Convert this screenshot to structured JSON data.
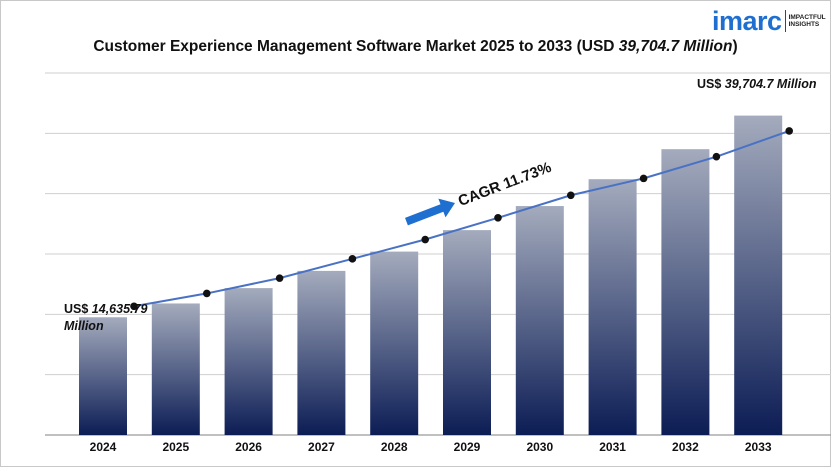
{
  "title_prefix": "Customer Experience Management Software Market 2025 to 2033 (USD ",
  "title_value": "39,704.7 Million",
  "title_suffix": ")",
  "logo": {
    "word": "imarc",
    "tagline_1": "IMPACTFUL",
    "tagline_2": "INSIGHTS"
  },
  "annotations": {
    "start_prefix": "US$ ",
    "start_value": "14,635.79",
    "start_unit": "Million",
    "end_prefix": "US$ ",
    "end_value": "39,704.7 Million",
    "cagr": "CAGR 11.73%"
  },
  "colors": {
    "bar_top": "#a4abbd",
    "bar_bottom": "#0c1d55",
    "line": "#4a72c4",
    "marker": "#111111",
    "arrow": "#1f6fd1",
    "grid": "#cfcfcf"
  },
  "chart_data": {
    "type": "bar",
    "categories": [
      "2024",
      "2025",
      "2026",
      "2027",
      "2028",
      "2029",
      "2030",
      "2031",
      "2032",
      "2033"
    ],
    "values": [
      14635.79,
      16350,
      18260,
      20400,
      22800,
      25470,
      28460,
      31800,
      35530,
      39704.7
    ],
    "overlay_line": [
      16000,
      17600,
      19500,
      21900,
      24300,
      27000,
      29800,
      31900,
      34600,
      37800
    ],
    "unit": "USD Million",
    "grid": true,
    "ylim": [
      0,
      45000
    ]
  }
}
